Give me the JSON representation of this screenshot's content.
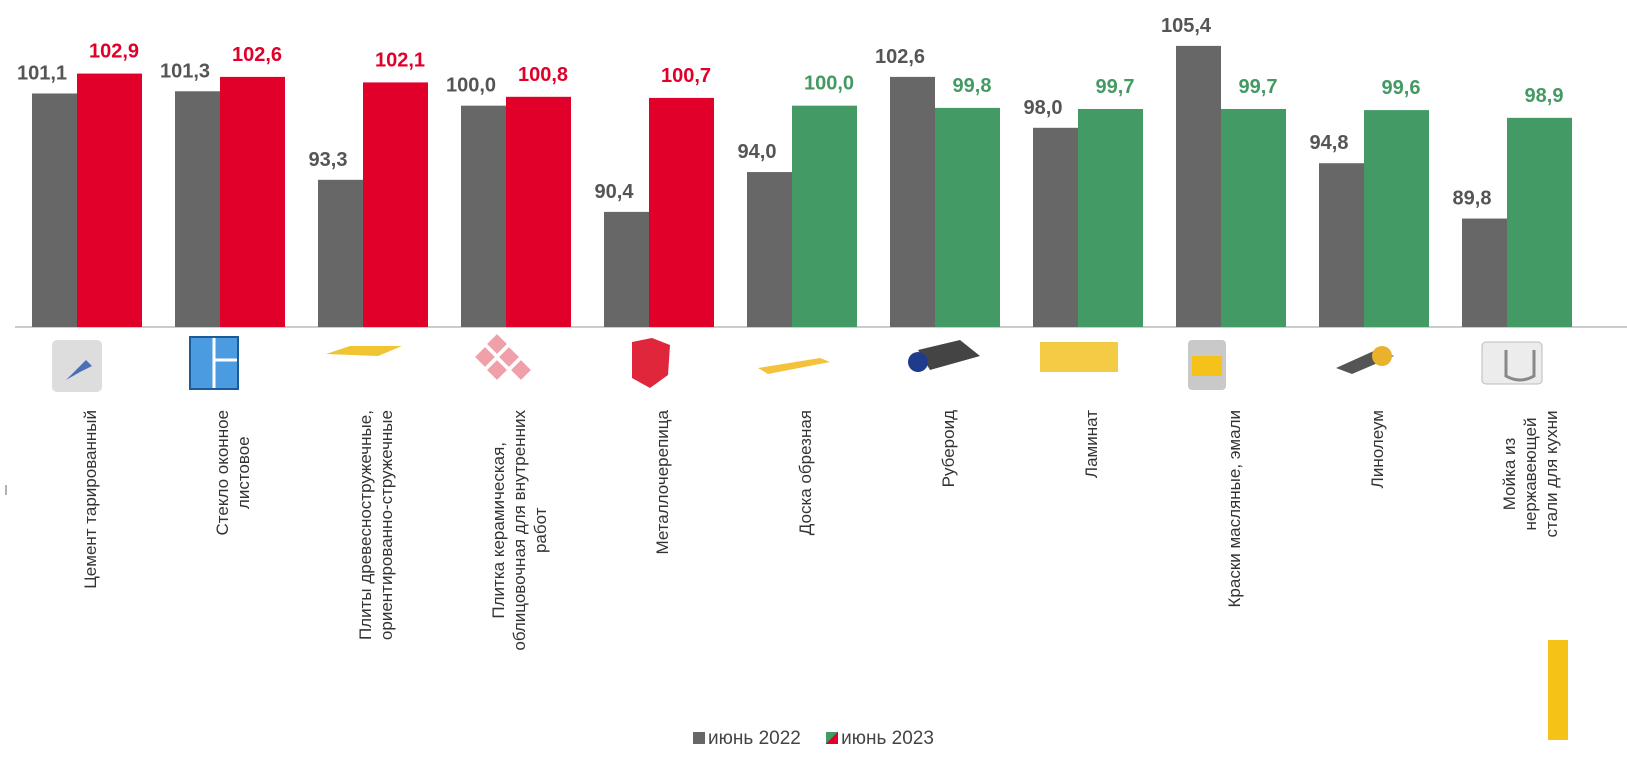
{
  "chart_data": {
    "type": "bar",
    "categories": [
      "Цемент тарированный",
      "Стекло оконное\nлистовое",
      "Плиты древесностружечные,\nориентированно-стружечные",
      "Плитка керамическая,\nоблицовочная для внутренних\nработ",
      "Металлочерепица",
      "Доска обрезная",
      "Рубероид",
      "Ламинат",
      "Краски масляные, эмали",
      "Линолеум",
      "Мойка из нержавеющей\nстали для кухни"
    ],
    "series": [
      {
        "name": "июнь 2022",
        "color": "#676767",
        "values": [
          101.1,
          101.3,
          93.3,
          100.0,
          90.4,
          94.0,
          102.6,
          98.0,
          105.4,
          94.8,
          89.8
        ],
        "value_labels": [
          "101,1",
          "101,3",
          "93,3",
          "100,0",
          "90,4",
          "94,0",
          "102,6",
          "98,0",
          "105,4",
          "94,8",
          "89,8"
        ]
      },
      {
        "name": "июнь 2023",
        "colors": [
          "#e0002a",
          "#e0002a",
          "#e0002a",
          "#e0002a",
          "#e0002a",
          "#439a64",
          "#439a64",
          "#439a64",
          "#439a64",
          "#439a64",
          "#439a64"
        ],
        "values": [
          102.9,
          102.6,
          102.1,
          100.8,
          100.7,
          100.0,
          99.8,
          99.7,
          99.7,
          99.6,
          98.9
        ],
        "value_labels": [
          "102,9",
          "102,6",
          "102,1",
          "100,8",
          "100,7",
          "100,0",
          "99,8",
          "99,7",
          "99,7",
          "99,6",
          "98,9"
        ]
      }
    ],
    "ylim": [
      80,
      110
    ],
    "legend": "bottom"
  }
}
